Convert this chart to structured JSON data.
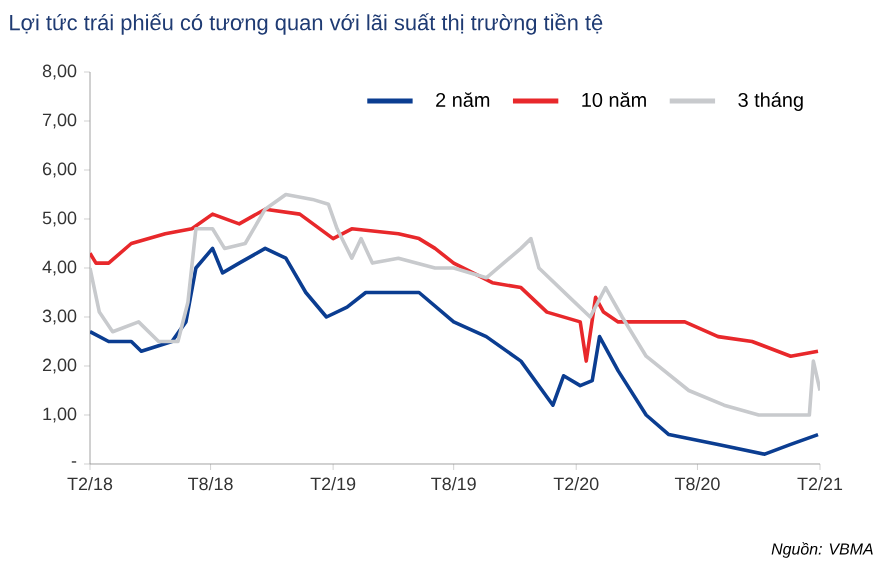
{
  "chart_data": {
    "type": "line",
    "title": "Lợi tức trái phiếu có tương quan với lãi suất thị trường tiền tệ",
    "annotations": [
      "Nguồn: VBMA"
    ],
    "xlim": [
      "2018-02-01",
      "2021-02-01"
    ],
    "xticks": [
      {
        "value": "2018-02-01",
        "label": "T2/18"
      },
      {
        "value": "2018-08-01",
        "label": "T8/18"
      },
      {
        "value": "2019-02-01",
        "label": "T2/19"
      },
      {
        "value": "2019-08-01",
        "label": "T8/19"
      },
      {
        "value": "2020-02-01",
        "label": "T2/20"
      },
      {
        "value": "2020-08-01",
        "label": "T8/20"
      },
      {
        "value": "2021-02-01",
        "label": "T2/21"
      }
    ],
    "ylim": [
      0,
      8
    ],
    "yticks": [
      {
        "value": 0,
        "label": "-"
      },
      {
        "value": 1,
        "label": "1,00"
      },
      {
        "value": 2,
        "label": "2,00"
      },
      {
        "value": 3,
        "label": "3,00"
      },
      {
        "value": 4,
        "label": "4,00"
      },
      {
        "value": 5,
        "label": "5,00"
      },
      {
        "value": 6,
        "label": "6,00"
      },
      {
        "value": 7,
        "label": "7,00"
      },
      {
        "value": 8,
        "label": "8,00"
      }
    ],
    "legend": "top",
    "grid": false,
    "marker": "none",
    "line_style": "solid",
    "series": [
      {
        "name": "2 năm",
        "color": "#0b3d91",
        "x": [
          "2018-02-01",
          "2018-03-01",
          "2018-04-04",
          "2018-04-19",
          "2018-06-04",
          "2018-06-25",
          "2018-07-10",
          "2018-08-04",
          "2018-08-19",
          "2018-09-13",
          "2018-10-22",
          "2018-11-22",
          "2018-12-22",
          "2019-01-22",
          "2019-02-22",
          "2019-03-22",
          "2019-05-10",
          "2019-06-10",
          "2019-08-01",
          "2019-09-19",
          "2019-11-10",
          "2019-12-28",
          "2020-01-13",
          "2020-02-07",
          "2020-02-25",
          "2020-03-07",
          "2020-04-04",
          "2020-05-16",
          "2020-06-19",
          "2020-09-01",
          "2020-11-10",
          "2020-12-19",
          "2021-01-29"
        ],
        "values": [
          2.7,
          2.5,
          2.5,
          2.3,
          2.5,
          2.9,
          4.0,
          4.4,
          3.9,
          4.1,
          4.4,
          4.2,
          3.5,
          3.0,
          3.2,
          3.5,
          3.5,
          3.5,
          2.9,
          2.6,
          2.1,
          1.2,
          1.8,
          1.6,
          1.7,
          2.6,
          1.9,
          1.0,
          0.6,
          0.4,
          0.2,
          0.4,
          0.6
        ]
      },
      {
        "name": "10 năm",
        "color": "#e8282b",
        "x": [
          "2018-02-01",
          "2018-02-10",
          "2018-03-01",
          "2018-04-04",
          "2018-05-25",
          "2018-07-04",
          "2018-08-04",
          "2018-09-13",
          "2018-10-22",
          "2018-12-13",
          "2019-02-01",
          "2019-03-01",
          "2019-05-10",
          "2019-06-10",
          "2019-07-04",
          "2019-08-01",
          "2019-09-28",
          "2019-11-10",
          "2019-12-19",
          "2020-02-07",
          "2020-02-16",
          "2020-03-01",
          "2020-03-13",
          "2020-04-04",
          "2020-07-13",
          "2020-09-01",
          "2020-10-22",
          "2020-12-19",
          "2021-01-29"
        ],
        "values": [
          4.3,
          4.1,
          4.1,
          4.5,
          4.7,
          4.8,
          5.1,
          4.9,
          5.2,
          5.1,
          4.6,
          4.8,
          4.7,
          4.6,
          4.4,
          4.1,
          3.7,
          3.6,
          3.1,
          2.9,
          2.1,
          3.4,
          3.1,
          2.9,
          2.9,
          2.6,
          2.5,
          2.2,
          2.3
        ]
      },
      {
        "name": "3 tháng",
        "color": "#c8cacd",
        "x": [
          "2018-02-01",
          "2018-02-15",
          "2018-03-07",
          "2018-04-15",
          "2018-05-15",
          "2018-06-13",
          "2018-06-28",
          "2018-07-10",
          "2018-08-04",
          "2018-08-22",
          "2018-09-22",
          "2018-10-22",
          "2018-11-22",
          "2019-01-01",
          "2019-01-25",
          "2019-02-07",
          "2019-03-01",
          "2019-03-15",
          "2019-04-01",
          "2019-05-10",
          "2019-07-04",
          "2019-08-01",
          "2019-09-19",
          "2019-11-10",
          "2019-11-25",
          "2019-12-07",
          "2020-01-22",
          "2020-02-22",
          "2020-03-16",
          "2020-04-10",
          "2020-05-16",
          "2020-07-19",
          "2020-09-10",
          "2020-11-01",
          "2021-01-01",
          "2021-01-16",
          "2021-01-22",
          "2021-02-01"
        ],
        "values": [
          4.0,
          3.1,
          2.7,
          2.9,
          2.5,
          2.5,
          3.3,
          4.8,
          4.8,
          4.4,
          4.5,
          5.2,
          5.5,
          5.4,
          5.3,
          4.8,
          4.2,
          4.6,
          4.1,
          4.2,
          4.0,
          4.0,
          3.8,
          4.4,
          4.6,
          4.0,
          3.4,
          3.0,
          3.6,
          3.0,
          2.2,
          1.5,
          1.2,
          1.0,
          1.0,
          1.0,
          2.1,
          1.5
        ]
      }
    ]
  }
}
